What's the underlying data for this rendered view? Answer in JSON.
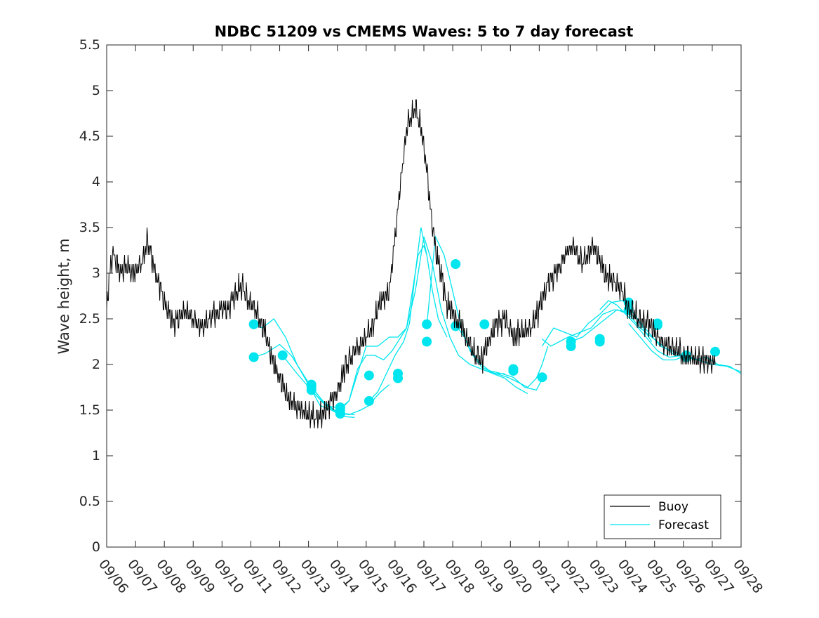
{
  "chart_data": {
    "type": "line",
    "title": "NDBC 51209 vs CMEMS Waves: 5 to 7 day forecast",
    "xlabel": "",
    "ylabel": "Wave height, m",
    "xlim": [
      0,
      22
    ],
    "ylim": [
      0,
      5.5
    ],
    "x_ticks": [
      0,
      1,
      2,
      3,
      4,
      5,
      6,
      7,
      8,
      9,
      10,
      11,
      12,
      13,
      14,
      15,
      16,
      17,
      18,
      19,
      20,
      21,
      22
    ],
    "x_tick_labels": [
      "09/06",
      "09/07",
      "09/08",
      "09/09",
      "09/10",
      "09/11",
      "09/12",
      "09/13",
      "09/14",
      "09/15",
      "09/16",
      "09/17",
      "09/18",
      "09/19",
      "09/20",
      "09/21",
      "09/22",
      "09/23",
      "09/24",
      "09/25",
      "09/26",
      "09/27",
      "09/28"
    ],
    "y_ticks": [
      0,
      0.5,
      1,
      1.5,
      2,
      2.5,
      3,
      3.5,
      4,
      4.5,
      5,
      5.5
    ],
    "y_tick_labels": [
      "0",
      "0.5",
      "1",
      "1.5",
      "2",
      "2.5",
      "3",
      "3.5",
      "4",
      "4.5",
      "5",
      "5.5"
    ],
    "grid": false,
    "legend": {
      "location": "bottom-right",
      "entries": [
        "Buoy",
        "Forecast"
      ]
    },
    "colors": {
      "buoy": "#000000",
      "forecast": "#00e5ee",
      "axes": "#262626"
    },
    "series": [
      {
        "name": "Buoy",
        "color": "#000000",
        "x": [
          0,
          0.1,
          0.2,
          0.35,
          0.5,
          0.7,
          0.9,
          1.1,
          1.3,
          1.4,
          1.5,
          1.7,
          1.9,
          2.1,
          2.3,
          2.5,
          2.7,
          3.0,
          3.3,
          3.6,
          3.9,
          4.2,
          4.5,
          4.7,
          4.9,
          5.2,
          5.5,
          5.8,
          6.0,
          6.2,
          6.5,
          6.8,
          7.0,
          7.3,
          7.6,
          8.0,
          8.3,
          8.6,
          8.9,
          9.2,
          9.5,
          9.8,
          10.1,
          10.4,
          10.7,
          10.9,
          11.05,
          11.2,
          11.3,
          11.45,
          11.6,
          11.75,
          11.9,
          12.1,
          12.35,
          12.6,
          12.8,
          13.0,
          13.2,
          13.5,
          13.8,
          14.1,
          14.4,
          14.7,
          15.0,
          15.3,
          15.6,
          15.9,
          16.2,
          16.5,
          16.7,
          16.9,
          17.1,
          17.3,
          17.6,
          17.9,
          18.1,
          18.3,
          18.5,
          18.7,
          18.9,
          19.1,
          19.3,
          19.5,
          19.8,
          20.1,
          20.4,
          20.7,
          21.0,
          21.1
        ],
        "y": [
          2.6,
          3.0,
          3.2,
          3.1,
          3.0,
          3.1,
          3.0,
          3.05,
          3.2,
          3.35,
          3.25,
          3.0,
          2.8,
          2.6,
          2.45,
          2.5,
          2.6,
          2.5,
          2.4,
          2.5,
          2.6,
          2.6,
          2.8,
          2.85,
          2.7,
          2.6,
          2.35,
          2.0,
          1.85,
          1.7,
          1.55,
          1.5,
          1.45,
          1.4,
          1.5,
          1.7,
          2.0,
          2.15,
          2.25,
          2.4,
          2.7,
          2.8,
          3.7,
          4.6,
          4.8,
          4.6,
          4.3,
          3.8,
          3.5,
          3.2,
          3.0,
          2.7,
          2.6,
          2.5,
          2.4,
          2.2,
          2.1,
          2.05,
          2.2,
          2.45,
          2.5,
          2.3,
          2.35,
          2.4,
          2.6,
          2.9,
          3.0,
          3.2,
          3.3,
          3.1,
          3.2,
          3.3,
          3.15,
          3.0,
          2.9,
          2.8,
          2.6,
          2.55,
          2.5,
          2.45,
          2.4,
          2.3,
          2.2,
          2.2,
          2.15,
          2.1,
          2.05,
          2.05,
          2.0,
          2.0
        ]
      },
      {
        "name": "Forecast",
        "color": "#00e5ee",
        "runs": [
          {
            "x": [
              5.1,
              5.4,
              5.8,
              6.2,
              6.6,
              7.0,
              7.4,
              7.8,
              8.2,
              8.6
            ],
            "y": [
              2.44,
              2.4,
              2.5,
              2.3,
              2.0,
              1.78,
              1.55,
              1.5,
              1.43,
              1.42
            ]
          },
          {
            "x": [
              5.1,
              5.5,
              6.0,
              6.4,
              6.8,
              7.1,
              7.5,
              7.9,
              8.3,
              8.6
            ],
            "y": [
              2.08,
              2.12,
              2.22,
              2.1,
              1.9,
              1.75,
              1.6,
              1.5,
              1.46,
              1.45
            ]
          },
          {
            "x": [
              6.1,
              6.6,
              7.1,
              7.5,
              8.0,
              8.4,
              8.8,
              9.1,
              9.3,
              9.5,
              9.8
            ],
            "y": [
              2.1,
              1.9,
              1.72,
              1.58,
              1.47,
              1.45,
              1.5,
              1.55,
              1.63,
              1.7,
              1.78
            ]
          },
          {
            "x": [
              7.1,
              7.6,
              8.1,
              8.4,
              8.7,
              9.0,
              9.3,
              9.6,
              9.9,
              10.1
            ],
            "y": [
              1.76,
              1.55,
              1.52,
              1.6,
              1.95,
              2.1,
              2.1,
              2.05,
              2.15,
              2.25
            ]
          },
          {
            "x": [
              8.1,
              8.4,
              8.7,
              9.0,
              9.4,
              9.8,
              10.1,
              10.4,
              10.6,
              10.8,
              11.0,
              11.1
            ],
            "y": [
              1.5,
              1.6,
              1.9,
              2.2,
              2.2,
              2.3,
              2.3,
              2.4,
              2.8,
              3.2,
              3.3,
              3.2
            ]
          },
          {
            "x": [
              9.1,
              9.4,
              9.7,
              10.0,
              10.3,
              10.5,
              10.7,
              10.9,
              11.1,
              11.3,
              11.5,
              11.8
            ],
            "y": [
              1.6,
              1.7,
              1.9,
              2.1,
              2.25,
              2.45,
              3.0,
              3.5,
              3.2,
              2.8,
              2.5,
              2.3
            ]
          },
          {
            "x": [
              10.1,
              10.4,
              10.7,
              11.0,
              11.3,
              11.6,
              11.9,
              12.2,
              12.6,
              13.0,
              13.4,
              13.8
            ],
            "y": [
              2.25,
              2.4,
              2.8,
              3.4,
              3.1,
              2.6,
              2.3,
              2.1,
              2.0,
              1.95,
              1.9,
              1.9
            ]
          },
          {
            "x": [
              11.1,
              11.4,
              11.7,
              12.0,
              12.3,
              12.6,
              13.0,
              13.4,
              13.8,
              14.2,
              14.6
            ],
            "y": [
              2.42,
              3.4,
              3.2,
              2.8,
              2.4,
              2.15,
              2.0,
              1.9,
              1.85,
              1.75,
              1.68
            ]
          },
          {
            "x": [
              12.1,
              12.4,
              12.7,
              13.0,
              13.3,
              13.7,
              14.1,
              14.5,
              14.9,
              15.2
            ],
            "y": [
              2.44,
              2.3,
              2.1,
              1.97,
              1.93,
              1.9,
              1.86,
              1.75,
              1.72,
              1.9
            ]
          },
          {
            "x": [
              13.1,
              13.5,
              13.9,
              14.3,
              14.6,
              14.9,
              15.1,
              15.3
            ],
            "y": [
              1.94,
              1.9,
              1.86,
              1.8,
              1.75,
              1.85,
              2.0,
              2.2
            ]
          },
          {
            "x": [
              15.1,
              15.4,
              15.7,
              16.0,
              16.4,
              16.8,
              17.2,
              17.6,
              18.0,
              18.4,
              18.8,
              19.2,
              19.6,
              20.0
            ],
            "y": [
              2.28,
              2.2,
              2.25,
              2.3,
              2.35,
              2.4,
              2.55,
              2.6,
              2.58,
              2.5,
              2.35,
              2.2,
              2.15,
              2.1
            ]
          },
          {
            "x": [
              15.1,
              15.5,
              15.9,
              16.3,
              16.7,
              17.1,
              17.5,
              17.9,
              18.2,
              18.5,
              18.9
            ],
            "y": [
              2.2,
              2.4,
              2.35,
              2.3,
              2.45,
              2.55,
              2.68,
              2.7,
              2.6,
              2.45,
              2.25
            ]
          },
          {
            "x": [
              16.1,
              16.5,
              16.9,
              17.3,
              17.7,
              18.1,
              18.5,
              18.9,
              19.3,
              19.7,
              20.1,
              20.5,
              21.0
            ],
            "y": [
              2.25,
              2.3,
              2.4,
              2.5,
              2.6,
              2.55,
              2.4,
              2.3,
              2.2,
              2.1,
              2.08,
              2.05,
              2.0
            ]
          },
          {
            "x": [
              17.1,
              17.4,
              17.7,
              18.0,
              18.3,
              18.7,
              19.1,
              19.5,
              20.0,
              20.4,
              20.8,
              21.2,
              21.6,
              22.0
            ],
            "y": [
              2.6,
              2.7,
              2.65,
              2.55,
              2.45,
              2.3,
              2.15,
              2.08,
              2.1,
              2.05,
              2.08,
              2.0,
              1.98,
              1.9
            ]
          },
          {
            "x": [
              18.1,
              18.5,
              18.9,
              19.3,
              19.7,
              20.1,
              20.5,
              21.0,
              21.5,
              22.0
            ],
            "y": [
              2.45,
              2.3,
              2.15,
              2.05,
              2.05,
              2.1,
              2.05,
              2.0,
              1.98,
              1.92
            ]
          }
        ],
        "markers": [
          {
            "x": 5.1,
            "y": 2.44
          },
          {
            "x": 5.1,
            "y": 2.08
          },
          {
            "x": 6.1,
            "y": 2.1
          },
          {
            "x": 7.1,
            "y": 1.78
          },
          {
            "x": 7.1,
            "y": 1.72
          },
          {
            "x": 7.1,
            "y": 1.76
          },
          {
            "x": 8.1,
            "y": 1.5
          },
          {
            "x": 8.1,
            "y": 1.46
          },
          {
            "x": 8.1,
            "y": 1.53
          },
          {
            "x": 9.1,
            "y": 1.88
          },
          {
            "x": 9.1,
            "y": 1.6
          },
          {
            "x": 10.1,
            "y": 1.85
          },
          {
            "x": 10.1,
            "y": 1.9
          },
          {
            "x": 11.1,
            "y": 2.44
          },
          {
            "x": 11.1,
            "y": 2.25
          },
          {
            "x": 12.1,
            "y": 3.1
          },
          {
            "x": 12.1,
            "y": 2.42
          },
          {
            "x": 13.1,
            "y": 2.44
          },
          {
            "x": 14.1,
            "y": 1.95
          },
          {
            "x": 14.1,
            "y": 1.93
          },
          {
            "x": 15.1,
            "y": 1.86
          },
          {
            "x": 16.1,
            "y": 2.25
          },
          {
            "x": 16.1,
            "y": 2.2
          },
          {
            "x": 17.1,
            "y": 2.28
          },
          {
            "x": 17.1,
            "y": 2.25
          },
          {
            "x": 18.1,
            "y": 2.68
          },
          {
            "x": 18.1,
            "y": 2.6
          },
          {
            "x": 19.1,
            "y": 2.45
          },
          {
            "x": 19.1,
            "y": 2.43
          },
          {
            "x": 20.1,
            "y": 2.1
          },
          {
            "x": 20.1,
            "y": 2.08
          },
          {
            "x": 21.1,
            "y": 2.14
          }
        ]
      }
    ]
  }
}
